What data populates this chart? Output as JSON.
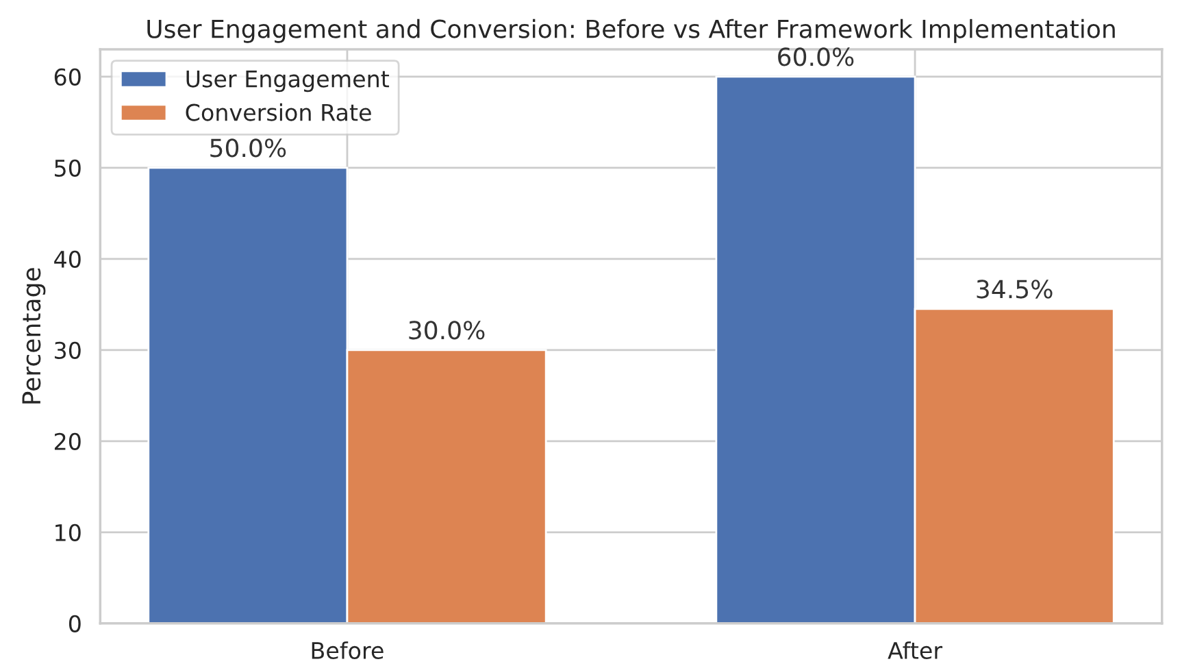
{
  "chart_data": {
    "type": "bar",
    "title": "User Engagement and Conversion: Before vs After Framework Implementation",
    "ylabel": "Percentage",
    "categories": [
      "Before",
      "After"
    ],
    "series": [
      {
        "name": "User Engagement",
        "color": "#4c72b0",
        "values": [
          50.0,
          60.0
        ],
        "value_labels": [
          "50.0%",
          "60.0%"
        ]
      },
      {
        "name": "Conversion Rate",
        "color": "#dd8452",
        "values": [
          30.0,
          34.5
        ],
        "value_labels": [
          "30.0%",
          "34.5%"
        ]
      }
    ],
    "ylim": [
      0,
      63
    ],
    "yticks": [
      0,
      10,
      20,
      30,
      40,
      50,
      60
    ],
    "grid": true,
    "legend": "top left"
  }
}
